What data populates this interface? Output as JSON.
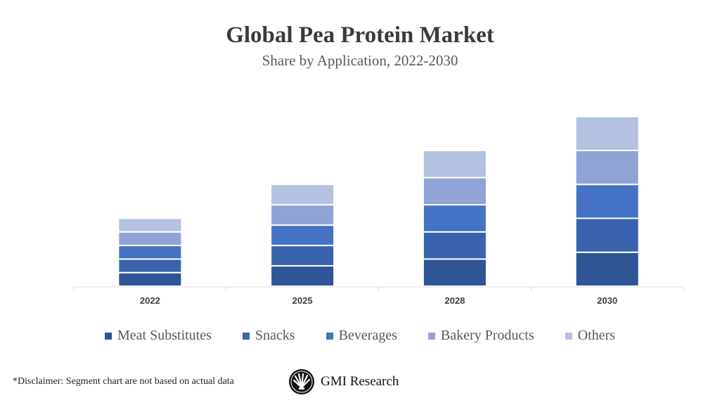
{
  "chart_data": {
    "type": "bar",
    "stacked": true,
    "title": "Global Pea Protein Market",
    "subtitle": "Share by Application, 2022-2030",
    "categories": [
      "2022",
      "2025",
      "2028",
      "2030"
    ],
    "series": [
      {
        "name": "Meat Substitutes",
        "color": "#2f5597",
        "values": [
          1.0,
          1.5,
          2.0,
          2.5
        ]
      },
      {
        "name": "Snacks",
        "color": "#3a63ad",
        "values": [
          1.0,
          1.5,
          2.0,
          2.5
        ]
      },
      {
        "name": "Beverages",
        "color": "#4472c4",
        "values": [
          1.0,
          1.5,
          2.0,
          2.5
        ]
      },
      {
        "name": "Bakery Products",
        "color": "#8fa3d4",
        "values": [
          1.0,
          1.5,
          2.0,
          2.5
        ]
      },
      {
        "name": "Others",
        "color": "#b4c1e1",
        "values": [
          1.0,
          1.5,
          2.0,
          2.5
        ]
      }
    ],
    "y_axis_shown": false,
    "grid": false,
    "legend_position": "bottom"
  },
  "disclaimer": "*Disclaimer:  Segment chart are not based on actual data",
  "logo": {
    "text": "GMI Research"
  }
}
